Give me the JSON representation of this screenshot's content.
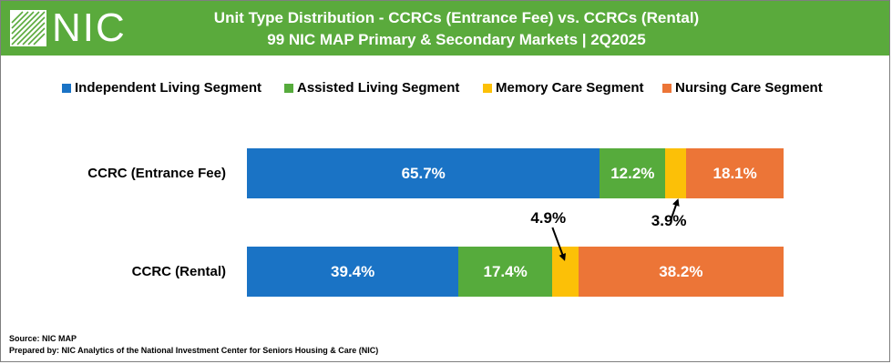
{
  "header": {
    "brand": "NIC",
    "title_line1": "Unit Type Distribution - CCRCs (Entrance Fee) vs. CCRCs (Rental)",
    "title_line2": "99 NIC MAP Primary & Secondary Markets | 2Q2025",
    "logo_icon": "nic-logo-icon",
    "background_color": "#5aaa3c"
  },
  "chart_data": {
    "type": "bar",
    "orientation": "horizontal",
    "stacked": true,
    "normalized": true,
    "categories": [
      "CCRC (Entrance Fee)",
      "CCRC (Rental)"
    ],
    "series": [
      {
        "name": "Independent Living Segment",
        "color": "#1a73c5",
        "values": [
          65.7,
          39.4
        ],
        "labels": [
          "65.7%",
          "39.4%"
        ]
      },
      {
        "name": "Assisted Living Segment",
        "color": "#56ab3c",
        "values": [
          12.2,
          17.4
        ],
        "labels": [
          "12.2%",
          "17.4%"
        ]
      },
      {
        "name": "Memory Care Segment",
        "color": "#fcc007",
        "values": [
          3.9,
          4.9
        ],
        "labels": [
          "3.9%",
          "4.9%"
        ]
      },
      {
        "name": "Nursing Care Segment",
        "color": "#ec7537",
        "values": [
          18.1,
          38.2
        ],
        "labels": [
          "18.1%",
          "38.2%"
        ]
      }
    ],
    "legend_position": "top",
    "grid": false
  },
  "footer": {
    "source": "Source: NIC MAP",
    "prepared_by": "Prepared by: NIC Analytics  of the National Investment Center for Seniors Housing & Care (NIC)"
  }
}
